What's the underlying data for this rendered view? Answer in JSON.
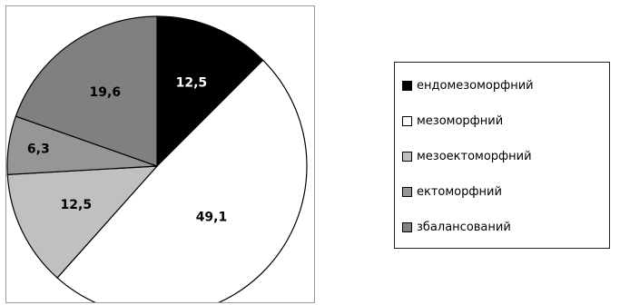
{
  "chart_data": {
    "type": "pie",
    "categories": [
      "ендомезоморфний",
      "мезоморфний",
      "мезоектоморфний",
      "ектоморфний",
      "збалансований"
    ],
    "values": [
      12.5,
      49.1,
      12.5,
      6.3,
      19.6
    ],
    "labels": [
      "12,5",
      "49,1",
      "12,5",
      "6,3",
      "19,6"
    ],
    "colors": [
      "#000000",
      "#ffffff",
      "#c0c0c0",
      "#969696",
      "#808080"
    ],
    "label_colors": [
      "#ffffff",
      "#000000",
      "#000000",
      "#000000",
      "#000000"
    ],
    "legend_position": "right"
  }
}
